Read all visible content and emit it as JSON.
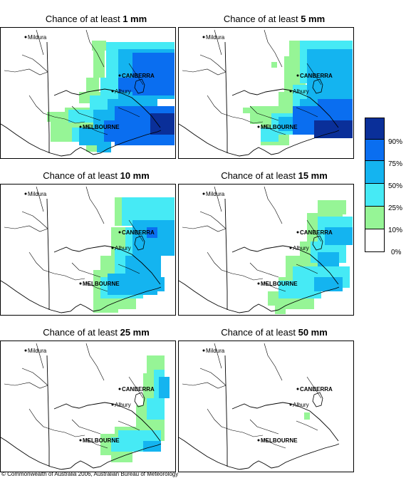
{
  "panels": [
    {
      "prefix": "Chance of at least ",
      "value": "1 mm"
    },
    {
      "prefix": "Chance of at least ",
      "value": "5 mm"
    },
    {
      "prefix": "Chance of at least ",
      "value": "10 mm"
    },
    {
      "prefix": "Chance of at least ",
      "value": "15 mm"
    },
    {
      "prefix": "Chance of at least ",
      "value": "25 mm"
    },
    {
      "prefix": "Chance of at least ",
      "value": "50 mm"
    }
  ],
  "places": {
    "mildura": "Mildura",
    "canberra": "CANBERRA",
    "albury": "Albury",
    "melbourne": "MELBOURNE"
  },
  "legend": {
    "labels": [
      "90%",
      "75%",
      "50%",
      "25%",
      "10%",
      "0%"
    ],
    "colors": [
      "#0a2f99",
      "#0a6ef0",
      "#14b4f0",
      "#46eaf5",
      "#96f596",
      "#ffffff"
    ]
  },
  "copyright": "© Commonwealth of Australia 2006, Australian Bureau of Meteorology"
}
